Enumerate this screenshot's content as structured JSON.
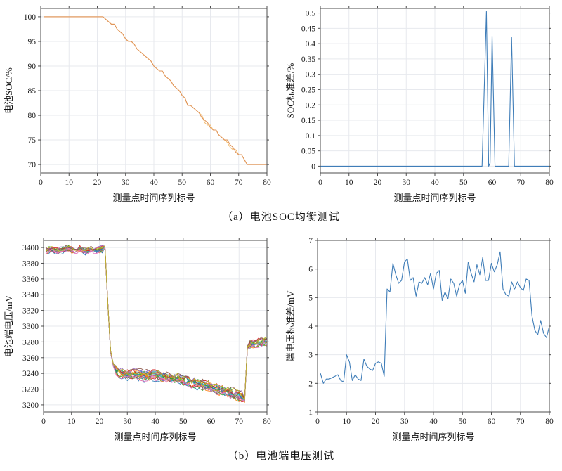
{
  "captions": {
    "a": "（a）电池SOC均衡测试",
    "b": "（b）电池端电压测试"
  },
  "style": {
    "grid_color": "#e7e9ee",
    "axis_color": "#4d4d4d",
    "tick_text_color": "#1a1a1a",
    "label_text_color": "#111111",
    "accent_blue": "#3f7db8",
    "accent_orange": "#f3bd72"
  },
  "chart_data": [
    {
      "id": "soc-balance",
      "type": "line",
      "title": "",
      "xlabel": "测量点时间序列标号",
      "ylabel": "电池SOC/%",
      "xlim": [
        0,
        80
      ],
      "ylim": [
        68.3,
        101.7
      ],
      "xticks": [
        0,
        10,
        20,
        30,
        40,
        50,
        60,
        70,
        80
      ],
      "yticks": [
        70,
        75,
        80,
        85,
        90,
        95,
        100
      ],
      "grid": true,
      "legend": "none",
      "series": [
        {
          "name": "soc-cells-group-1",
          "color": "#f3bd72",
          "points": [
            [
              1,
              100
            ],
            [
              22,
              100
            ],
            [
              23,
              99.5
            ],
            [
              24,
              99
            ],
            [
              25,
              98.5
            ],
            [
              26,
              98.5
            ],
            [
              27,
              97.5
            ],
            [
              28,
              97
            ],
            [
              29,
              96.5
            ],
            [
              30,
              95.5
            ],
            [
              31,
              95
            ],
            [
              32,
              95
            ],
            [
              33,
              94.5
            ],
            [
              34,
              93.5
            ],
            [
              35,
              93
            ],
            [
              36,
              92.5
            ],
            [
              37,
              92
            ],
            [
              38,
              91.5
            ],
            [
              39,
              91
            ],
            [
              40,
              90
            ],
            [
              41,
              89.5
            ],
            [
              42,
              89
            ],
            [
              43,
              89
            ],
            [
              44,
              88
            ],
            [
              45,
              87.5
            ],
            [
              46,
              87
            ],
            [
              47,
              86
            ],
            [
              48,
              85.5
            ],
            [
              49,
              85
            ],
            [
              50,
              84
            ],
            [
              51,
              83.5
            ],
            [
              52,
              82
            ],
            [
              53,
              82
            ],
            [
              54,
              81.5
            ],
            [
              55,
              81
            ],
            [
              56,
              80.5
            ],
            [
              57,
              80
            ],
            [
              58,
              78.5
            ],
            [
              59,
              78
            ],
            [
              60,
              78
            ],
            [
              61,
              77
            ],
            [
              62,
              77
            ],
            [
              63,
              76
            ],
            [
              64,
              75.5
            ],
            [
              65,
              75
            ],
            [
              66,
              74.5
            ],
            [
              67,
              73.5
            ],
            [
              68,
              73
            ],
            [
              69,
              73
            ],
            [
              70,
              72
            ],
            [
              71,
              72
            ],
            [
              72,
              71
            ],
            [
              73,
              70
            ],
            [
              80,
              70
            ]
          ]
        },
        {
          "name": "soc-cells-group-2",
          "color": "#e0955a",
          "points": [
            [
              1,
              100
            ],
            [
              22,
              100
            ],
            [
              23,
              99.5
            ],
            [
              24,
              99
            ],
            [
              25,
              98.5
            ],
            [
              26,
              98.5
            ],
            [
              27,
              97.5
            ],
            [
              28,
              97
            ],
            [
              29,
              96.5
            ],
            [
              30,
              95.5
            ],
            [
              31,
              95
            ],
            [
              32,
              95
            ],
            [
              33,
              94.5
            ],
            [
              34,
              93.5
            ],
            [
              35,
              93
            ],
            [
              36,
              92.5
            ],
            [
              37,
              92
            ],
            [
              38,
              91.5
            ],
            [
              39,
              91
            ],
            [
              40,
              90
            ],
            [
              41,
              89.5
            ],
            [
              42,
              89
            ],
            [
              43,
              89
            ],
            [
              44,
              88
            ],
            [
              45,
              87.5
            ],
            [
              46,
              87
            ],
            [
              47,
              86
            ],
            [
              48,
              85.5
            ],
            [
              49,
              85
            ],
            [
              50,
              84
            ],
            [
              51,
              83.5
            ],
            [
              52,
              82
            ],
            [
              53,
              82
            ],
            [
              54,
              81.5
            ],
            [
              55,
              81
            ],
            [
              56,
              80.5
            ],
            [
              57,
              79.5
            ],
            [
              58,
              79
            ],
            [
              59,
              78.5
            ],
            [
              60,
              77.5
            ],
            [
              61,
              77
            ],
            [
              62,
              77
            ],
            [
              63,
              76
            ],
            [
              64,
              75.5
            ],
            [
              65,
              75
            ],
            [
              66,
              75
            ],
            [
              67,
              74
            ],
            [
              68,
              73.5
            ],
            [
              69,
              72.5
            ],
            [
              70,
              72
            ],
            [
              71,
              72
            ],
            [
              72,
              71
            ],
            [
              73,
              70
            ],
            [
              80,
              70
            ]
          ]
        }
      ]
    },
    {
      "id": "soc-std",
      "type": "line",
      "title": "",
      "xlabel": "测量点时间序列标号",
      "ylabel": "SOC标准差/%",
      "xlim": [
        0,
        80
      ],
      "ylim": [
        -0.022,
        0.515
      ],
      "xticks": [
        0,
        10,
        20,
        30,
        40,
        50,
        60,
        70,
        80
      ],
      "yticks": [
        0,
        0.05,
        0.1,
        0.15,
        0.2,
        0.25,
        0.3,
        0.35,
        0.4,
        0.45,
        0.5
      ],
      "grid": true,
      "legend": "none",
      "series": [
        {
          "name": "soc-std-line",
          "color": "#3f7db8",
          "points": [
            [
              0,
              0
            ],
            [
              56.5,
              0
            ],
            [
              58,
              0.505
            ],
            [
              58.8,
              0
            ],
            [
              59.3,
              0.01
            ],
            [
              60,
              0.425
            ],
            [
              61,
              0
            ],
            [
              65.8,
              0
            ],
            [
              66.8,
              0.42
            ],
            [
              67.8,
              0
            ],
            [
              80,
              0
            ]
          ]
        }
      ]
    },
    {
      "id": "cell-voltage",
      "type": "line",
      "title": "",
      "xlabel": "测量点时间序列标号",
      "ylabel": "电池端电压/mV",
      "xlim": [
        0,
        80
      ],
      "ylim": [
        3191,
        3409
      ],
      "xticks": [
        0,
        10,
        20,
        30,
        40,
        50,
        60,
        70,
        80
      ],
      "yticks": [
        3200,
        3220,
        3240,
        3260,
        3280,
        3300,
        3320,
        3340,
        3360,
        3380,
        3400
      ],
      "grid": true,
      "legend": "none",
      "cluster": {
        "description": "≈18 battery-cell voltage traces overlapping",
        "x_start": 1,
        "x_end": 80,
        "base": [
          [
            1,
            3396
          ],
          [
            3,
            3398
          ],
          [
            5,
            3395
          ],
          [
            7,
            3397
          ],
          [
            9,
            3399
          ],
          [
            11,
            3396
          ],
          [
            13,
            3398
          ],
          [
            15,
            3395
          ],
          [
            17,
            3397
          ],
          [
            19,
            3396
          ],
          [
            21,
            3398
          ],
          [
            22,
            3401
          ],
          [
            23,
            3330
          ],
          [
            24,
            3268
          ],
          [
            25,
            3250
          ],
          [
            26,
            3243
          ],
          [
            28,
            3240
          ],
          [
            30,
            3238
          ],
          [
            33,
            3239
          ],
          [
            36,
            3237
          ],
          [
            39,
            3238
          ],
          [
            42,
            3236
          ],
          [
            45,
            3234
          ],
          [
            48,
            3233
          ],
          [
            51,
            3230
          ],
          [
            54,
            3228
          ],
          [
            57,
            3225
          ],
          [
            60,
            3222
          ],
          [
            63,
            3219
          ],
          [
            66,
            3216
          ],
          [
            69,
            3213
          ],
          [
            71,
            3210
          ],
          [
            72,
            3206
          ],
          [
            72.7,
            3270
          ],
          [
            73.5,
            3276
          ],
          [
            75,
            3277
          ],
          [
            77,
            3279
          ],
          [
            80,
            3281
          ]
        ],
        "offsets": [
          -8,
          -6,
          -5,
          -4,
          -3,
          -2,
          -1,
          0,
          1,
          2,
          3,
          4,
          5,
          6,
          7,
          8,
          -7,
          5.5
        ],
        "colors": [
          "#1f77b4",
          "#ff7f0e",
          "#2ca02c",
          "#d62728",
          "#9467bd",
          "#8c564b",
          "#e377c2",
          "#7f7f7f",
          "#bcbd22",
          "#17becf",
          "#1f77b4",
          "#ff7f0e",
          "#2ca02c",
          "#d62728",
          "#9467bd",
          "#8c564b",
          "#e377c2",
          "#bcbd22"
        ]
      }
    },
    {
      "id": "voltage-std",
      "type": "line",
      "title": "",
      "xlabel": "测量点时间序列标号",
      "ylabel": "端电压标准差/mV",
      "xlim": [
        0,
        80
      ],
      "ylim": [
        1,
        7
      ],
      "xticks": [
        0,
        10,
        20,
        30,
        40,
        50,
        60,
        70,
        80
      ],
      "yticks": [
        1,
        2,
        3,
        4,
        5,
        6,
        7
      ],
      "grid": true,
      "legend": "none",
      "series": [
        {
          "name": "voltage-std-line",
          "color": "#3f7db8",
          "x_start": 1,
          "values": [
            2.35,
            2.0,
            2.15,
            2.15,
            2.2,
            2.25,
            2.3,
            2.1,
            2.05,
            3.0,
            2.75,
            2.1,
            2.3,
            2.15,
            2.1,
            2.85,
            2.6,
            2.5,
            2.45,
            2.7,
            2.75,
            2.7,
            2.25,
            5.3,
            5.2,
            6.2,
            5.8,
            5.5,
            5.6,
            6.25,
            6.35,
            5.6,
            5.7,
            5.05,
            5.55,
            5.5,
            5.7,
            5.45,
            5.85,
            5.3,
            5.85,
            5.95,
            4.9,
            5.2,
            4.95,
            5.65,
            5.5,
            5.05,
            5.45,
            5.6,
            5.15,
            6.25,
            5.85,
            5.55,
            6.15,
            5.8,
            6.4,
            5.6,
            5.6,
            6.2,
            5.9,
            6.15,
            6.6,
            5.3,
            5.1,
            5.05,
            5.55,
            5.3,
            5.55,
            5.35,
            5.25,
            5.65,
            5.6,
            4.35,
            3.85,
            3.7,
            4.2,
            3.75,
            3.6,
            4.0
          ]
        }
      ]
    }
  ]
}
